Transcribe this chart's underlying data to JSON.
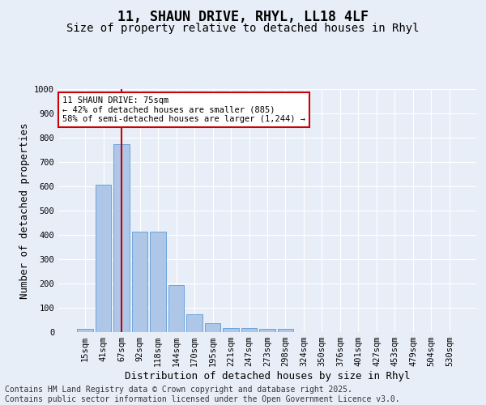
{
  "title": "11, SHAUN DRIVE, RHYL, LL18 4LF",
  "subtitle": "Size of property relative to detached houses in Rhyl",
  "xlabel": "Distribution of detached houses by size in Rhyl",
  "ylabel": "Number of detached properties",
  "categories": [
    "15sqm",
    "41sqm",
    "67sqm",
    "92sqm",
    "118sqm",
    "144sqm",
    "170sqm",
    "195sqm",
    "221sqm",
    "247sqm",
    "273sqm",
    "298sqm",
    "324sqm",
    "350sqm",
    "376sqm",
    "401sqm",
    "427sqm",
    "453sqm",
    "479sqm",
    "504sqm",
    "530sqm"
  ],
  "values": [
    15,
    607,
    775,
    413,
    413,
    192,
    75,
    38,
    17,
    17,
    14,
    14,
    0,
    0,
    0,
    0,
    0,
    0,
    0,
    0,
    0
  ],
  "bar_color": "#aec6e8",
  "bar_edge_color": "#5b9bd5",
  "vline_x": 2,
  "vline_color": "#cc0000",
  "annotation_text": "11 SHAUN DRIVE: 75sqm\n← 42% of detached houses are smaller (885)\n58% of semi-detached houses are larger (1,244) →",
  "annotation_box_facecolor": "#ffffff",
  "annotation_box_edgecolor": "#cc0000",
  "ylim": [
    0,
    1000
  ],
  "yticks": [
    0,
    100,
    200,
    300,
    400,
    500,
    600,
    700,
    800,
    900,
    1000
  ],
  "background_color": "#e8eef8",
  "grid_color": "#ffffff",
  "footer_line1": "Contains HM Land Registry data © Crown copyright and database right 2025.",
  "footer_line2": "Contains public sector information licensed under the Open Government Licence v3.0.",
  "title_fontsize": 12,
  "subtitle_fontsize": 10,
  "axis_label_fontsize": 9,
  "tick_fontsize": 7.5,
  "annotation_fontsize": 7.5,
  "footer_fontsize": 7
}
